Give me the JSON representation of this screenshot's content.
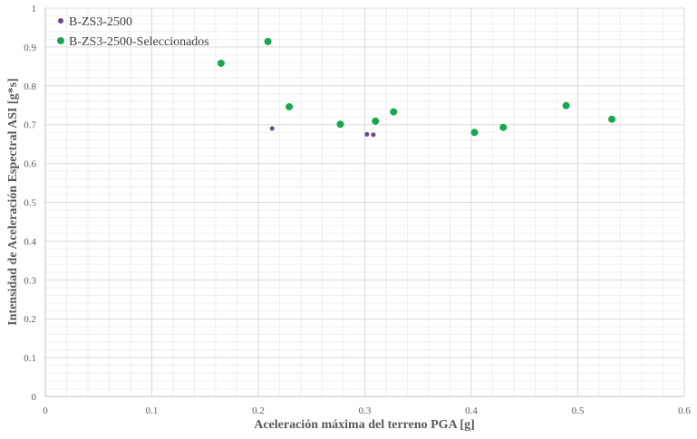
{
  "chart_data": {
    "type": "scatter",
    "xlabel": "Aceleración máxima del terreno PGA [g]",
    "ylabel": "Intensidad de Aceleración Espectral ASI [g*s]",
    "xlim": [
      0,
      0.6
    ],
    "ylim": [
      0,
      1
    ],
    "x_ticks": [
      "0",
      "0.1",
      "0.2",
      "0.3",
      "0.4",
      "0.5",
      "0.6"
    ],
    "y_ticks": [
      "0",
      "0.1",
      "0.2",
      "0.3",
      "0.4",
      "0.5",
      "0.6",
      "0.7",
      "0.8",
      "0.9",
      "1"
    ],
    "grid": "major and minor",
    "legend_position": "top-left",
    "series": [
      {
        "name": "B-ZS3-2500",
        "color": "#6a4a7f",
        "marker": "small-circle",
        "points": [
          {
            "x": 0.213,
            "y": 0.69
          },
          {
            "x": 0.302,
            "y": 0.675
          },
          {
            "x": 0.308,
            "y": 0.674
          }
        ]
      },
      {
        "name": "B-ZS3-2500-Seleccionados",
        "color": "#17a84f",
        "marker": "large-circle",
        "points": [
          {
            "x": 0.165,
            "y": 0.858
          },
          {
            "x": 0.209,
            "y": 0.914
          },
          {
            "x": 0.229,
            "y": 0.746
          },
          {
            "x": 0.277,
            "y": 0.701
          },
          {
            "x": 0.31,
            "y": 0.709
          },
          {
            "x": 0.327,
            "y": 0.733
          },
          {
            "x": 0.403,
            "y": 0.68
          },
          {
            "x": 0.43,
            "y": 0.693
          },
          {
            "x": 0.489,
            "y": 0.749
          },
          {
            "x": 0.532,
            "y": 0.714
          }
        ]
      }
    ]
  }
}
